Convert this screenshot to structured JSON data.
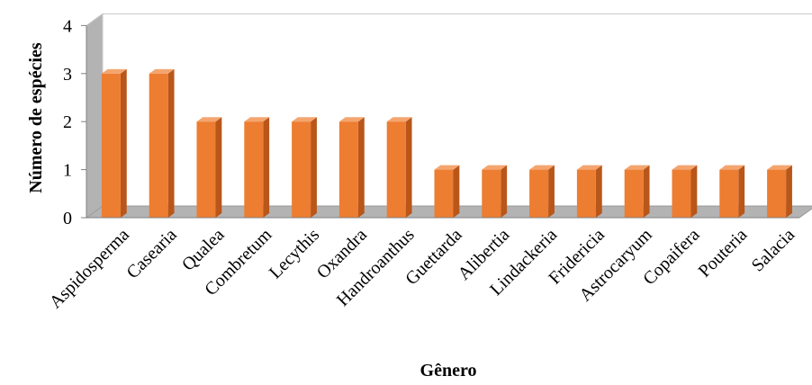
{
  "chart_data": {
    "type": "bar",
    "style": "3d-column",
    "categories": [
      "Aspidosperma",
      "Casearia",
      "Qualea",
      "Combretum",
      "Lecythis",
      "Oxandra",
      "Handroanthus",
      "Guettarda",
      "Alibertia",
      "Lindackeria",
      "Fridericia",
      "Astrocaryum",
      "Copaifera",
      "Pouteria",
      "Salacia"
    ],
    "values": [
      3,
      3,
      2,
      2,
      2,
      2,
      2,
      1,
      1,
      1,
      1,
      1,
      1,
      1,
      1
    ],
    "title": "",
    "xlabel": "Gênero",
    "ylabel": "Número de espécies",
    "ylim": [
      0,
      4
    ],
    "yticks": [
      "0",
      "1",
      "2",
      "3",
      "4"
    ],
    "grid": false,
    "legend": "none",
    "colors": {
      "bar_front": "#ED7D31",
      "bar_side": "#B9561A",
      "bar_top": "#F4A56F",
      "wall": "#FFFFFF",
      "wall_edge": "#C8C8C8",
      "floor": "#B3B3B3",
      "axis": "#808080"
    }
  }
}
